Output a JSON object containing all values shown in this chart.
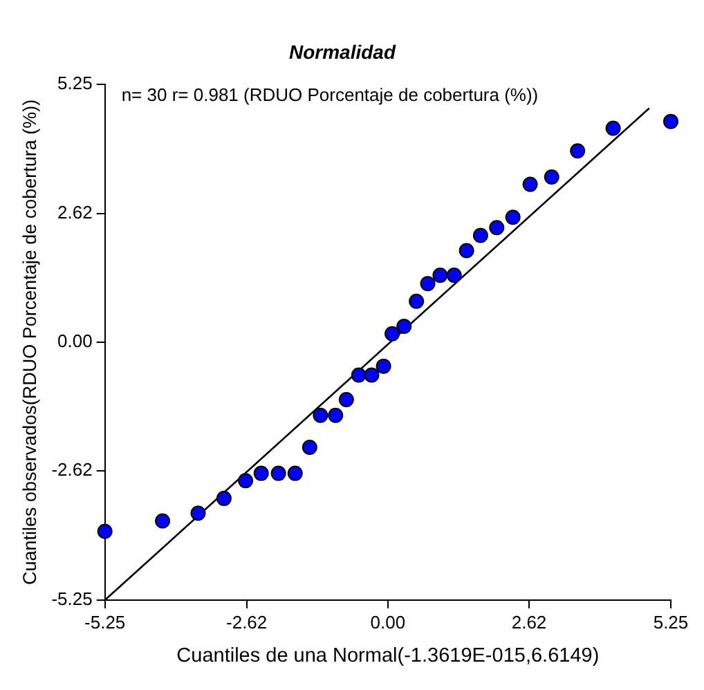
{
  "chart_data": {
    "type": "scatter",
    "title": "Normalidad",
    "xlabel": "Cuantiles de una Normal(-1.3619E-015,6.6149)",
    "ylabel": "Cuantiles observados(RDUO Porcentaje de cobertura (%))",
    "annotations": [
      "n= 30 r= 0.981 (RDUO Porcentaje de cobertura (%))"
    ],
    "series": [
      {
        "color": "#0000ff",
        "marker": "circle",
        "x": [
          -5.25,
          -4.18,
          -3.52,
          -3.04,
          -2.64,
          -2.35,
          -2.03,
          -1.72,
          -1.45,
          -1.25,
          -0.97,
          -0.77,
          -0.54,
          -0.3,
          -0.08,
          0.08,
          0.3,
          0.53,
          0.74,
          0.97,
          1.23,
          1.46,
          1.72,
          2.02,
          2.32,
          2.64,
          3.04,
          3.52,
          4.18,
          5.25
        ],
        "values": [
          -3.85,
          -3.64,
          -3.48,
          -3.18,
          -2.82,
          -2.67,
          -2.67,
          -2.67,
          -2.14,
          -1.49,
          -1.49,
          -1.17,
          -0.67,
          -0.67,
          -0.49,
          0.17,
          0.32,
          0.83,
          1.19,
          1.36,
          1.36,
          1.86,
          2.17,
          2.33,
          2.54,
          3.21,
          3.36,
          3.89,
          4.35,
          4.49
        ]
      },
      {
        "type": "line",
        "color": "#000000",
        "marker": "none",
        "line_style": "solid",
        "x": [
          -5.25,
          4.85
        ],
        "values": [
          -5.25,
          4.76
        ]
      }
    ],
    "xlim": [
      -5.25,
      5.25
    ],
    "xticks": [
      -5.25,
      -2.62,
      {
        "value": 0,
        "label": "0.00"
      },
      2.62,
      5.25
    ],
    "ylim": [
      -5.25,
      5.25
    ],
    "yticks": [
      -5.25,
      -2.62,
      {
        "value": 0,
        "label": "0.00"
      },
      2.62,
      5.25
    ],
    "grid": false,
    "legend": false
  }
}
